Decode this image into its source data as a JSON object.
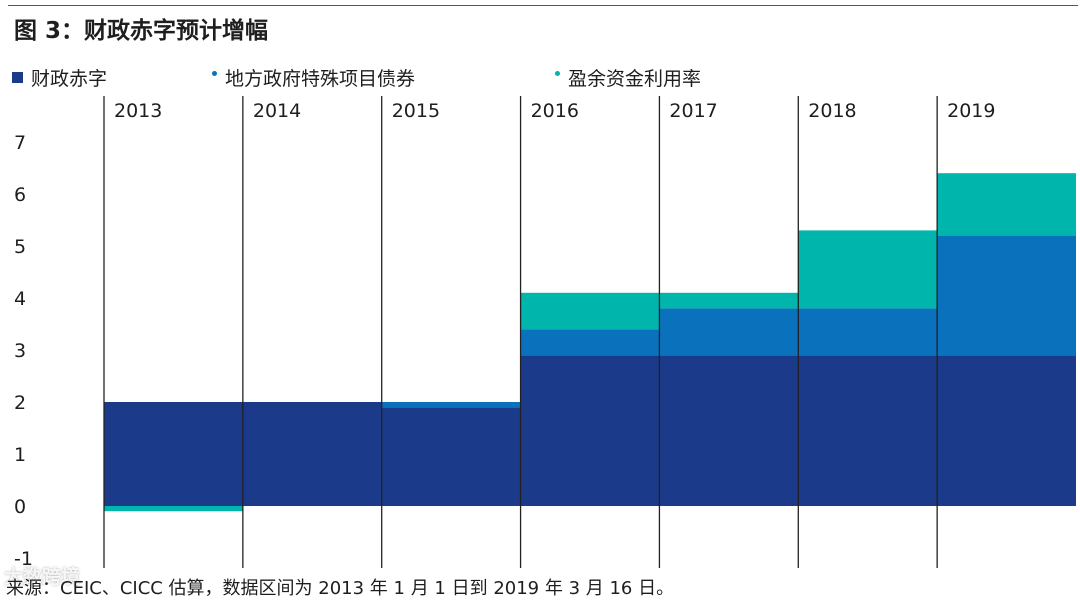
{
  "title": "图 3：财政赤字预计增幅",
  "legend": [
    {
      "label": "财政赤字",
      "marker": "square",
      "color": "#1c3a8a"
    },
    {
      "label": "地方政府特殊项目债券",
      "marker": "dot",
      "color": "#0a72bd"
    },
    {
      "label": "盈余资金利用率",
      "marker": "dot",
      "color": "#00b5ac"
    }
  ],
  "source": "来源：CEIC、CICC 估算，数据区间为 2013 年 1 月 1 日到 2019 年 3 月 16 日。",
  "watermark": "大数跨境",
  "chart_data": {
    "type": "bar",
    "stacked": true,
    "title": "图 3：财政赤字预计增幅",
    "xlabel": "",
    "ylabel": "",
    "categories": [
      "2013",
      "2014",
      "2015",
      "2016",
      "2017",
      "2018",
      "2019"
    ],
    "ylim": [
      -1,
      7
    ],
    "yticks": [
      -1,
      0,
      1,
      2,
      3,
      4,
      5,
      6,
      7
    ],
    "grid": false,
    "legend_position": "top",
    "series": [
      {
        "name": "财政赤字",
        "color": "#1c3a8a",
        "values": [
          2.0,
          2.0,
          1.9,
          2.9,
          2.9,
          2.9,
          2.9
        ]
      },
      {
        "name": "地方政府特殊项目债券",
        "color": "#0a72bd",
        "values": [
          0.0,
          0.0,
          0.1,
          0.5,
          0.9,
          0.9,
          2.3
        ]
      },
      {
        "name": "盈余资金利用率",
        "color": "#00b5ac",
        "values": [
          -0.1,
          0.0,
          0.0,
          0.7,
          0.3,
          1.5,
          1.2
        ]
      }
    ]
  }
}
